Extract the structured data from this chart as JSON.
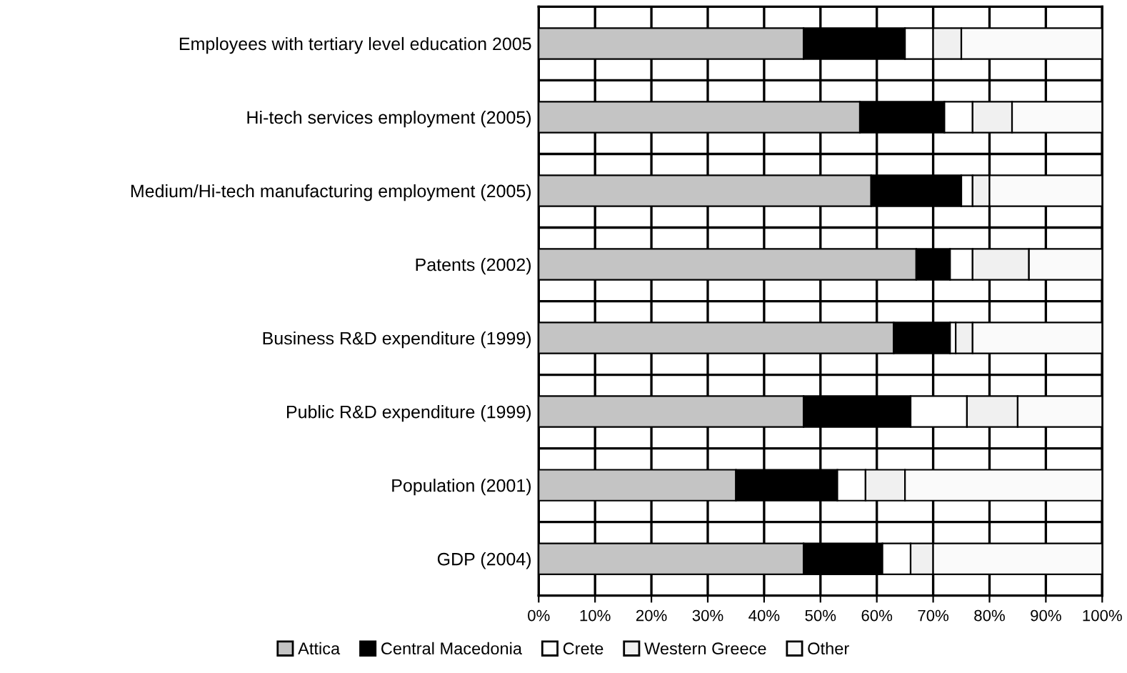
{
  "chart_data": {
    "type": "bar",
    "orientation": "horizontal",
    "stacked": true,
    "categories": [
      "Employees with tertiary level education 2005",
      "Hi-tech services employment (2005)",
      "Medium/Hi-tech manufacturing employment (2005)",
      "Patents (2002)",
      "Business R&D expenditure (1999)",
      "Public R&D expenditure (1999)",
      "Population (2001)",
      "GDP (2004)"
    ],
    "series": [
      {
        "name": "Attica",
        "color": "#c4c4c4",
        "values": [
          47,
          57,
          59,
          67,
          63,
          47,
          35,
          47
        ]
      },
      {
        "name": "Central Macedonia",
        "color": "#000000",
        "values": [
          18,
          15,
          16,
          6,
          10,
          19,
          18,
          14
        ]
      },
      {
        "name": "Crete",
        "color": "#ffffff",
        "values": [
          5,
          5,
          2,
          4,
          1,
          10,
          5,
          5
        ]
      },
      {
        "name": "Western Greece",
        "color": "#f0f0f0",
        "values": [
          5,
          7,
          3,
          10,
          3,
          9,
          7,
          4
        ]
      },
      {
        "name": "Other",
        "color": "#fafafa",
        "values": [
          25,
          16,
          20,
          13,
          23,
          15,
          35,
          30
        ]
      }
    ],
    "xlim": [
      0,
      100
    ],
    "xticks": [
      {
        "value": 0,
        "label": "0%"
      },
      {
        "value": 10,
        "label": "10%"
      },
      {
        "value": 20,
        "label": "20%"
      },
      {
        "value": 30,
        "label": "30%"
      },
      {
        "value": 40,
        "label": "40%"
      },
      {
        "value": 50,
        "label": "50%"
      },
      {
        "value": 60,
        "label": "60%"
      },
      {
        "value": 70,
        "label": "70%"
      },
      {
        "value": 80,
        "label": "80%"
      },
      {
        "value": 90,
        "label": "90%"
      },
      {
        "value": 100,
        "label": "100%"
      }
    ],
    "grid": true,
    "legend": "bottom"
  }
}
